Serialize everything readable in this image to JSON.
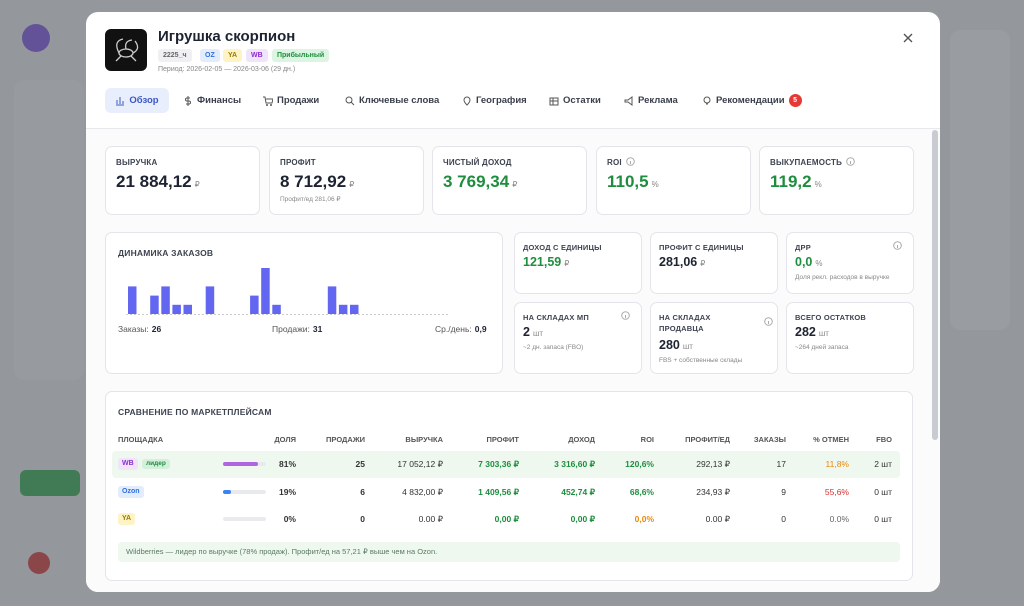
{
  "header": {
    "title": "Игрушка скорпион",
    "tags": [
      "2225_ч",
      "OZ",
      "YA",
      "WB",
      "Прибыльный"
    ],
    "period": "Период: 2026-02-05 — 2026-03-06 (29 дн.)"
  },
  "tabs": [
    "Обзор",
    "Финансы",
    "Продажи",
    "Ключевые слова",
    "География",
    "Остатки",
    "Реклама",
    "Рекомендации"
  ],
  "tab_badge": 5,
  "kpis": [
    {
      "label": "ВЫРУЧКА",
      "value": "21 884,12",
      "unit": "₽"
    },
    {
      "label": "ПРОФИТ",
      "value": "8 712,92",
      "unit": "₽",
      "sub": "Профит/ед 281,06 ₽"
    },
    {
      "label": "ЧИСТЫЙ ДОХОД",
      "value": "3 769,34",
      "unit": "₽"
    },
    {
      "label": "ROI",
      "value": "110,5",
      "unit": "%"
    },
    {
      "label": "ВЫКУПАЕМОСТЬ",
      "value": "119,2",
      "unit": "%"
    }
  ],
  "orders_chart": {
    "title": "ДИНАМИКА ЗАКАЗОВ",
    "values": [
      3,
      0,
      2,
      3,
      1,
      1,
      0,
      3,
      0,
      0,
      0,
      2,
      5,
      1,
      0,
      0,
      0,
      0,
      3,
      1,
      1,
      0,
      0,
      0,
      0,
      0,
      0,
      0,
      0
    ],
    "stats": [
      {
        "label": "Заказы:",
        "value": 26
      },
      {
        "label": "Продажи:",
        "value": 31
      },
      {
        "label": "Ср./день:",
        "value": "0,9"
      }
    ]
  },
  "cards": [
    {
      "label": "ДОХОД С ЕДИНИЦЫ",
      "value": "121,59",
      "unit": "₽"
    },
    {
      "label": "ПРОФИТ С ЕДИНИЦЫ",
      "value": "281,06",
      "unit": "₽"
    },
    {
      "label": "ДРР",
      "value": "0,0",
      "unit": "%",
      "sub": "Доля рекл. расходов в выручке"
    },
    {
      "label": "НА СКЛАДАХ МП",
      "value": "2",
      "unit": "шт",
      "sub": "~2 дн. запаса (FBO)"
    },
    {
      "label": "НА СКЛАДАХ ПРОДАВЦА",
      "value": "280",
      "unit": "шт",
      "sub": "FBS + собственные склады"
    },
    {
      "label": "ВСЕГО ОСТАТКОВ",
      "value": "282",
      "unit": "шт",
      "sub": "~264 дней запаса"
    }
  ],
  "comparison": {
    "title": "СРАВНЕНИЕ ПО МАРКЕТПЛЕЙСАМ",
    "columns": [
      "ПЛОЩАДКА",
      "ДОЛЯ",
      "ПРОДАЖИ",
      "ВЫРУЧКА",
      "ПРОФИТ",
      "ДОХОД",
      "ROI",
      "ПРОФИТ/ЕД",
      "ЗАКАЗЫ",
      "% ОТМЕН",
      "FBO"
    ],
    "rows": [
      {
        "platform": "WB",
        "badge": "лидер",
        "share": 81,
        "share_label": "81%",
        "sales": 25,
        "revenue": "17 052,12 ₽",
        "profit": "7 303,36 ₽",
        "income": "3 316,60 ₽",
        "roi": "120,6%",
        "roi_color": "#1e8e3e",
        "profit_per_unit": "292,13 ₽",
        "orders": 17,
        "cancel": "11,8%",
        "cancel_color": "#e8890c",
        "fbo": "2 шт",
        "color": "#b065e0"
      },
      {
        "platform": "Ozon",
        "share": 19,
        "share_label": "19%",
        "sales": 6,
        "revenue": "4 832,00 ₽",
        "profit": "1 409,56 ₽",
        "income": "452,74 ₽",
        "roi": "68,6%",
        "roi_color": "#1e8e3e",
        "profit_per_unit": "234,93 ₽",
        "orders": 9,
        "cancel": "55,6%",
        "cancel_color": "#d93030",
        "fbo": "0 шт",
        "color": "#3b82f6"
      },
      {
        "platform": "YA",
        "share": 0,
        "share_label": "0%",
        "sales": 0,
        "revenue": "0.00 ₽",
        "profit": "0,00 ₽",
        "income": "0,00 ₽",
        "roi": "0,0%",
        "roi_color": "#e8890c",
        "profit_per_unit": "0.00 ₽",
        "orders": 0,
        "cancel": "0.0%",
        "cancel_color": "#666",
        "fbo": "0 шт",
        "color": "#e6b800"
      }
    ],
    "note": "Wildberries — лидер по выручке (78% продаж). Профит/ед на 57,21 ₽ выше чем на Ozon."
  }
}
